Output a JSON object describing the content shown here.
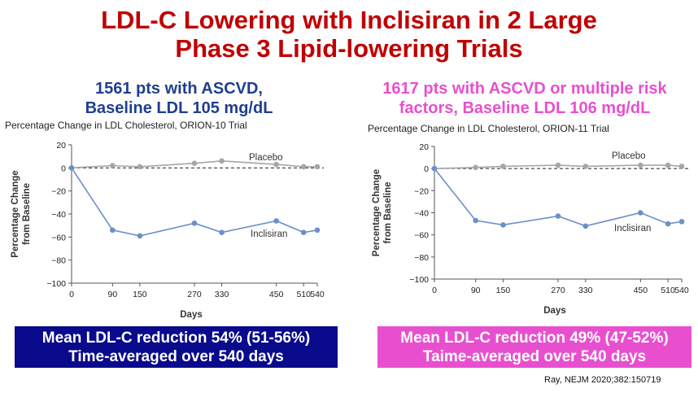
{
  "title": {
    "line1": "LDL-C Lowering with Inclisiran in 2 Large",
    "line2": "Phase 3 Lipid-lowering Trials"
  },
  "left": {
    "subtitle_line1": "1561 pts with ASCVD,",
    "subtitle_line2": "Baseline LDL 105 mg/dL",
    "summary_line1": "Mean LDL-C reduction 54% (51-56%)",
    "summary_line2": "Time-averaged over 540 days",
    "summary_color": "#0a0a8c",
    "subtitle_color": "#1f3f8f"
  },
  "right": {
    "subtitle_line1": "1617 pts with ASCVD or multiple risk",
    "subtitle_line2": "factors, Baseline LDL 106 mg/dL",
    "summary_line1": "Mean LDL-C reduction 49% (47-52%)",
    "summary_line2": "Taime-averaged over 540 days",
    "summary_color": "#e84fcf",
    "subtitle_color": "#e84fcf"
  },
  "citation": "Ray, NEJM 2020;382:150719",
  "chart_data": [
    {
      "type": "line",
      "title": "Percentage Change in LDL Cholesterol, ORION-10 Trial",
      "xlabel": "Days",
      "ylabel": "Percentage Change from Baseline",
      "ylabel_line1": "Percentage Change",
      "ylabel_line2": "from Baseline",
      "x_ticks": [
        0,
        90,
        150,
        270,
        330,
        450,
        510,
        540
      ],
      "y_ticks": [
        20,
        0,
        -20,
        -40,
        -60,
        -80,
        -100
      ],
      "xlim": [
        0,
        540
      ],
      "ylim": [
        -100,
        20
      ],
      "grid": false,
      "series": [
        {
          "name": "Placebo",
          "color": "#a6a6a6",
          "x": [
            0,
            90,
            150,
            270,
            330,
            450,
            510,
            540
          ],
          "y": [
            0,
            2,
            1,
            4,
            6,
            3,
            1,
            1
          ]
        },
        {
          "name": "Inclisiran",
          "color": "#6b8fc9",
          "x": [
            0,
            90,
            150,
            270,
            330,
            450,
            510,
            540
          ],
          "y": [
            0,
            -54,
            -59,
            -48,
            -56,
            -46,
            -56,
            -54
          ]
        }
      ]
    },
    {
      "type": "line",
      "title": "Percentage Change in LDL Cholesterol, ORION-11 Trial",
      "xlabel": "Days",
      "ylabel": "Percentage Change from Baseline",
      "ylabel_line1": "Percentage Change",
      "ylabel_line2": "from Baseline",
      "x_ticks": [
        0,
        90,
        150,
        270,
        330,
        450,
        510,
        540
      ],
      "y_ticks": [
        20,
        0,
        -20,
        -40,
        -60,
        -80,
        -100
      ],
      "xlim": [
        0,
        540
      ],
      "ylim": [
        -100,
        20
      ],
      "grid": false,
      "series": [
        {
          "name": "Placebo",
          "color": "#a6a6a6",
          "x": [
            0,
            90,
            150,
            270,
            330,
            450,
            510,
            540
          ],
          "y": [
            0,
            1,
            2,
            3,
            2,
            3,
            3,
            2
          ]
        },
        {
          "name": "Inclisiran",
          "color": "#6b8fc9",
          "x": [
            0,
            90,
            150,
            270,
            330,
            450,
            510,
            540
          ],
          "y": [
            0,
            -47,
            -51,
            -43,
            -52,
            -40,
            -50,
            -48
          ]
        }
      ]
    }
  ]
}
